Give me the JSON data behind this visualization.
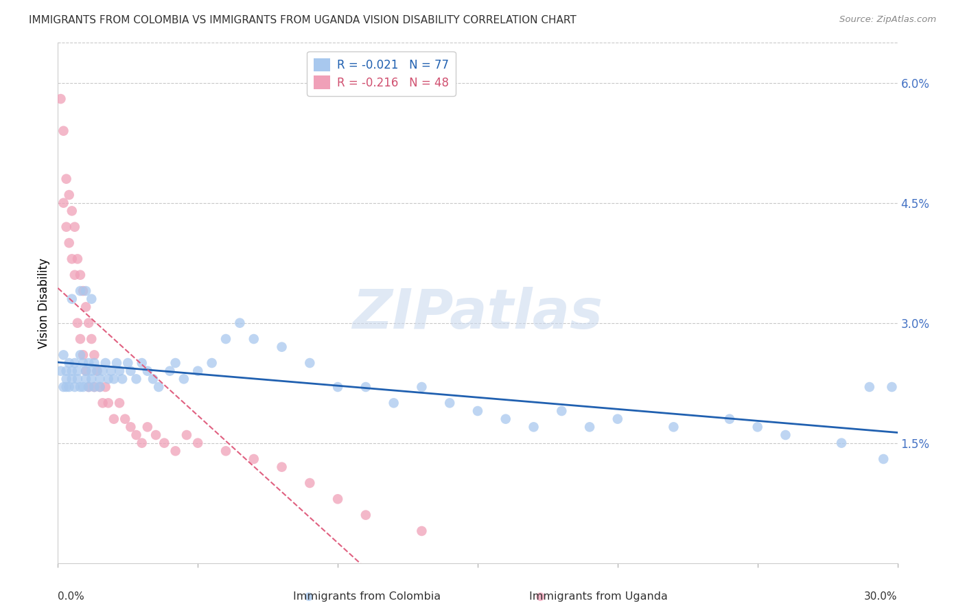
{
  "title": "IMMIGRANTS FROM COLOMBIA VS IMMIGRANTS FROM UGANDA VISION DISABILITY CORRELATION CHART",
  "source": "Source: ZipAtlas.com",
  "ylabel": "Vision Disability",
  "right_yticklabels": [
    "",
    "1.5%",
    "3.0%",
    "4.5%",
    "6.0%"
  ],
  "right_ytick_vals": [
    0.0,
    0.015,
    0.03,
    0.045,
    0.06
  ],
  "xlim": [
    0.0,
    0.3
  ],
  "ylim": [
    0.0,
    0.065
  ],
  "colombia_R": -0.021,
  "colombia_N": 77,
  "uganda_R": -0.216,
  "uganda_N": 48,
  "colombia_color": "#A8C8EE",
  "uganda_color": "#F0A0B8",
  "colombia_line_color": "#2060B0",
  "uganda_line_color": "#E06080",
  "watermark": "ZIPatlas",
  "colombia_x": [
    0.001,
    0.002,
    0.002,
    0.003,
    0.003,
    0.003,
    0.004,
    0.004,
    0.005,
    0.005,
    0.006,
    0.006,
    0.007,
    0.007,
    0.008,
    0.008,
    0.009,
    0.009,
    0.01,
    0.01,
    0.011,
    0.011,
    0.012,
    0.012,
    0.013,
    0.013,
    0.014,
    0.015,
    0.015,
    0.016,
    0.017,
    0.018,
    0.019,
    0.02,
    0.021,
    0.022,
    0.023,
    0.025,
    0.026,
    0.028,
    0.03,
    0.032,
    0.034,
    0.036,
    0.04,
    0.042,
    0.045,
    0.05,
    0.055,
    0.06,
    0.065,
    0.07,
    0.08,
    0.09,
    0.1,
    0.11,
    0.12,
    0.13,
    0.14,
    0.15,
    0.16,
    0.17,
    0.18,
    0.19,
    0.2,
    0.22,
    0.24,
    0.25,
    0.26,
    0.28,
    0.29,
    0.295,
    0.298,
    0.005,
    0.008,
    0.01,
    0.012
  ],
  "colombia_y": [
    0.024,
    0.026,
    0.022,
    0.024,
    0.023,
    0.022,
    0.025,
    0.022,
    0.024,
    0.023,
    0.025,
    0.022,
    0.024,
    0.023,
    0.026,
    0.022,
    0.025,
    0.022,
    0.024,
    0.023,
    0.025,
    0.022,
    0.024,
    0.023,
    0.025,
    0.022,
    0.024,
    0.023,
    0.022,
    0.024,
    0.025,
    0.023,
    0.024,
    0.023,
    0.025,
    0.024,
    0.023,
    0.025,
    0.024,
    0.023,
    0.025,
    0.024,
    0.023,
    0.022,
    0.024,
    0.025,
    0.023,
    0.024,
    0.025,
    0.028,
    0.03,
    0.028,
    0.027,
    0.025,
    0.022,
    0.022,
    0.02,
    0.022,
    0.02,
    0.019,
    0.018,
    0.017,
    0.019,
    0.017,
    0.018,
    0.017,
    0.018,
    0.017,
    0.016,
    0.015,
    0.022,
    0.013,
    0.022,
    0.033,
    0.034,
    0.034,
    0.033
  ],
  "uganda_x": [
    0.001,
    0.002,
    0.002,
    0.003,
    0.003,
    0.004,
    0.004,
    0.005,
    0.005,
    0.006,
    0.006,
    0.007,
    0.007,
    0.008,
    0.008,
    0.009,
    0.009,
    0.01,
    0.01,
    0.011,
    0.011,
    0.012,
    0.013,
    0.013,
    0.014,
    0.015,
    0.016,
    0.017,
    0.018,
    0.02,
    0.022,
    0.024,
    0.026,
    0.028,
    0.03,
    0.032,
    0.035,
    0.038,
    0.042,
    0.046,
    0.05,
    0.06,
    0.07,
    0.08,
    0.09,
    0.1,
    0.11,
    0.13
  ],
  "uganda_y": [
    0.058,
    0.054,
    0.045,
    0.048,
    0.042,
    0.046,
    0.04,
    0.044,
    0.038,
    0.042,
    0.036,
    0.038,
    0.03,
    0.036,
    0.028,
    0.034,
    0.026,
    0.032,
    0.024,
    0.03,
    0.022,
    0.028,
    0.026,
    0.022,
    0.024,
    0.022,
    0.02,
    0.022,
    0.02,
    0.018,
    0.02,
    0.018,
    0.017,
    0.016,
    0.015,
    0.017,
    0.016,
    0.015,
    0.014,
    0.016,
    0.015,
    0.014,
    0.013,
    0.012,
    0.01,
    0.008,
    0.006,
    0.004
  ]
}
